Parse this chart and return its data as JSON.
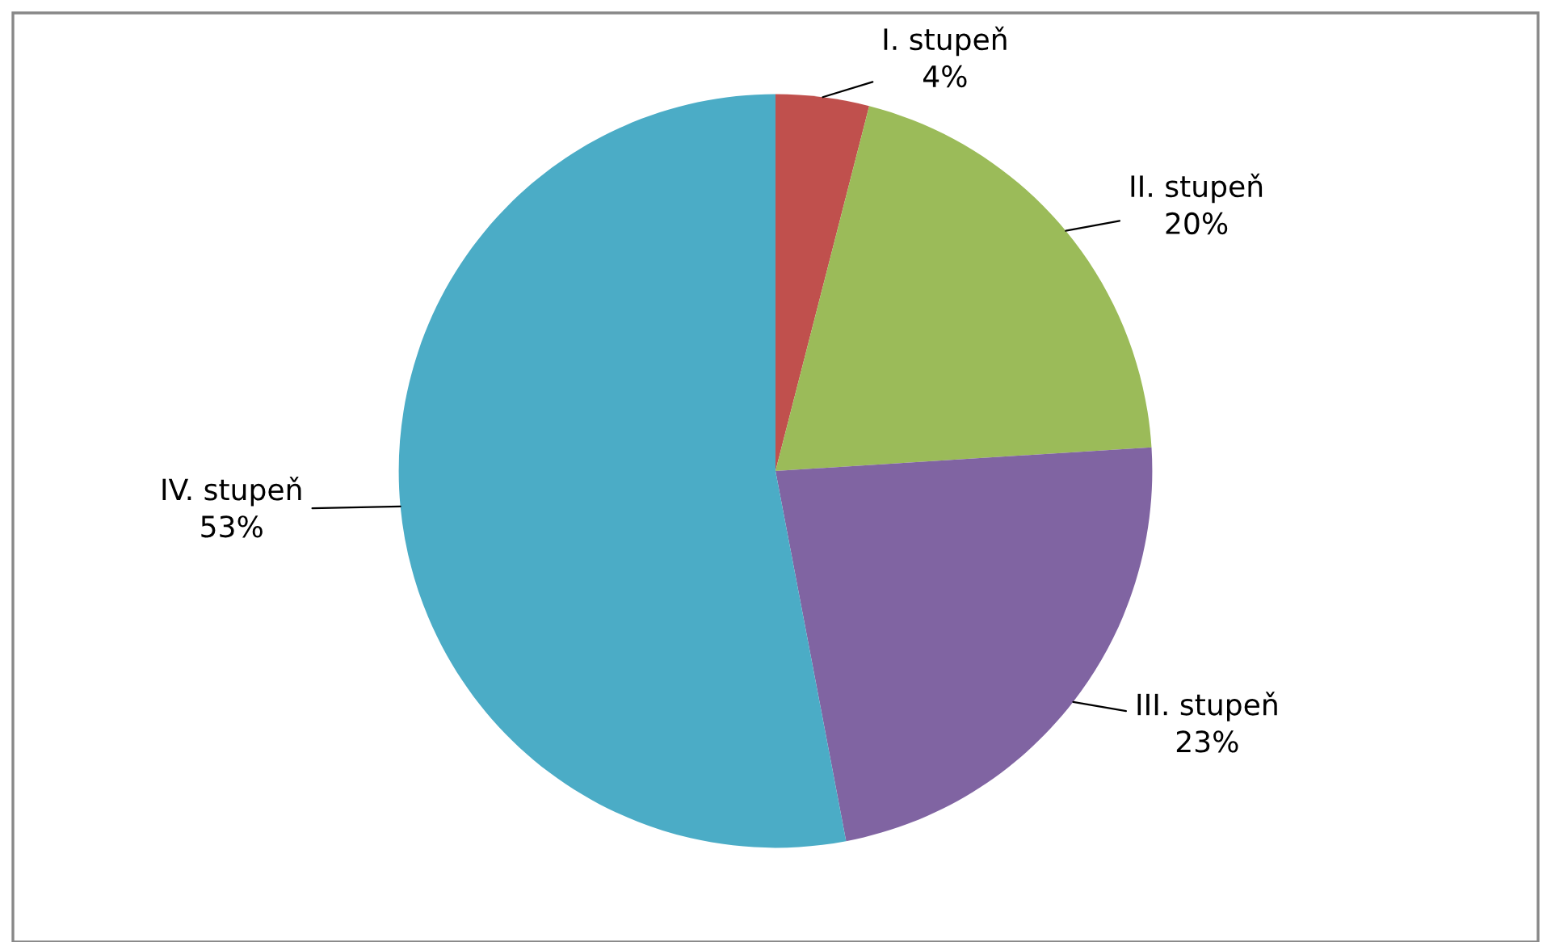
{
  "chart_data": {
    "type": "pie",
    "categories": [
      "I. stupeň",
      "II. stupeň",
      "III. stupeň",
      "IV. stupeň"
    ],
    "values": [
      4,
      20,
      23,
      53
    ],
    "colors": [
      "#c0504d",
      "#9bbb59",
      "#8064a2",
      "#4bacc6"
    ],
    "value_labels": [
      "4%",
      "20%",
      "23%",
      "53%"
    ],
    "legend": false
  }
}
